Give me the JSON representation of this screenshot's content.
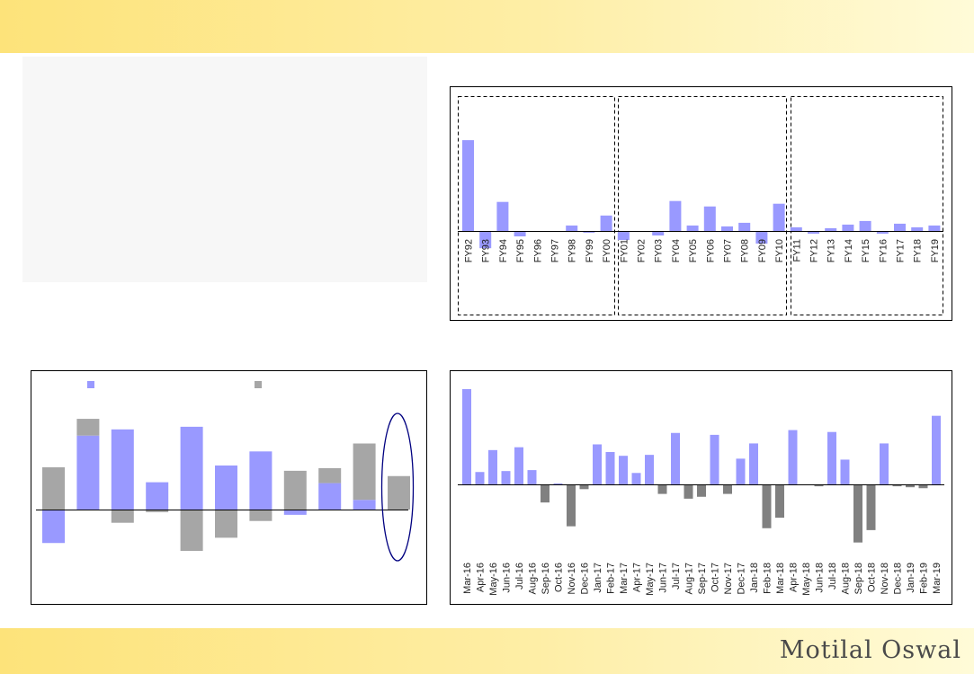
{
  "brand": {
    "logo_text": "Motilal Oswal"
  },
  "chart_data": [
    {
      "id": "fy-chart",
      "type": "bar",
      "categories": [
        "FY92",
        "FY93",
        "FY94",
        "FY95",
        "FY96",
        "FY97",
        "FY98",
        "FY99",
        "FY00",
        "FY01",
        "FY02",
        "FY03",
        "FY04",
        "FY05",
        "FY06",
        "FY07",
        "FY08",
        "FY09",
        "FY10",
        "FY11",
        "FY12",
        "FY13",
        "FY14",
        "FY15",
        "FY16",
        "FY17",
        "FY18",
        "FY19"
      ],
      "values": [
        10.0,
        -1.9,
        3.2,
        -0.6,
        0,
        0,
        0.6,
        -0.2,
        1.7,
        -1.0,
        0,
        -0.5,
        3.3,
        0.6,
        2.7,
        0.5,
        0.9,
        -1.4,
        3.0,
        0.4,
        -0.3,
        0.3,
        0.7,
        1.1,
        -0.3,
        0.8,
        0.4,
        0.6
      ],
      "colors": {
        "bar": "#9999ff"
      }
    },
    {
      "id": "stacked-chart",
      "type": "bar",
      "series": [
        {
          "values": [
            -3.8,
            8.4,
            9.1,
            3.1,
            9.4,
            5.0,
            6.6,
            -0.6,
            3.0,
            1.1,
            0
          ]
        },
        {
          "values": [
            4.8,
            1.9,
            -1.5,
            -0.3,
            -4.7,
            -3.2,
            -1.3,
            4.4,
            1.7,
            6.4,
            3.8
          ]
        }
      ],
      "colors": {
        "series1": "#9999ff",
        "series2": "#a6a6a6",
        "highlight": "#000080"
      }
    },
    {
      "id": "monthly-chart",
      "type": "bar",
      "categories": [
        "Mar-16",
        "Apr-16",
        "May-16",
        "Jun-16",
        "Jul-16",
        "Aug-16",
        "Sep-16",
        "Oct-16",
        "Nov-16",
        "Dec-16",
        "Jan-17",
        "Feb-17",
        "Mar-17",
        "Apr-17",
        "May-17",
        "Jun-17",
        "Jul-17",
        "Aug-17",
        "Sep-17",
        "Oct-17",
        "Nov-17",
        "Dec-17",
        "Jan-18",
        "Feb-18",
        "Mar-18",
        "Apr-18",
        "May-18",
        "Jun-18",
        "Jul-18",
        "Aug-18",
        "Sep-18",
        "Oct-18",
        "Nov-18",
        "Dec-18",
        "Jan-19",
        "Feb-19",
        "Mar-19"
      ],
      "values": [
        10.0,
        1.3,
        3.6,
        1.4,
        3.9,
        1.5,
        -1.9,
        0.1,
        -4.4,
        -0.5,
        4.2,
        3.4,
        3.0,
        1.2,
        3.1,
        -1.0,
        5.4,
        -1.5,
        -1.3,
        5.2,
        -1.0,
        2.7,
        4.3,
        -4.6,
        -3.5,
        5.7,
        0,
        -0.2,
        5.5,
        2.6,
        -6.1,
        -4.8,
        4.3,
        -0.2,
        -0.3,
        -0.4,
        7.2
      ],
      "colors": {
        "positive": "#9999ff",
        "negative": "#808080"
      }
    }
  ]
}
